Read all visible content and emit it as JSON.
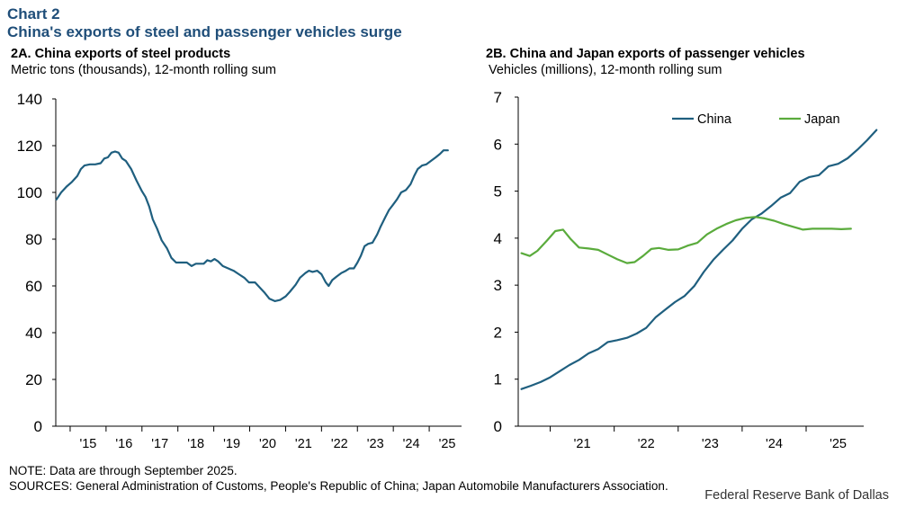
{
  "header": {
    "chart_label": "Chart 2",
    "title": "China's exports of steel and passenger vehicles surge"
  },
  "footer": {
    "note": "NOTE: Data are through September 2025.",
    "sources": "SOURCES: General Administration of Customs, People's Republic of China; Japan Automobile Manufacturers Association.",
    "credit": "Federal Reserve Bank of Dallas"
  },
  "colors": {
    "china": "#1f5f7f",
    "japan": "#5aab3c",
    "axis": "#000000"
  },
  "chart_data": [
    {
      "id": "panel-a",
      "type": "line",
      "title": "2A. China exports of steel products",
      "subtitle": "Metric tons (thousands),  12-month rolling sum",
      "xlabel": "",
      "ylabel": "Metric tons (thousands)",
      "ylim": [
        0,
        140
      ],
      "yticks": [
        0,
        20,
        40,
        60,
        80,
        100,
        120,
        140
      ],
      "xlim": [
        2014.6,
        2025.9
      ],
      "xticks": [
        {
          "label": "'15",
          "x": 2015.5
        },
        {
          "label": "'16",
          "x": 2016.5
        },
        {
          "label": "'17",
          "x": 2017.5
        },
        {
          "label": "'18",
          "x": 2018.5
        },
        {
          "label": "'19",
          "x": 2019.5
        },
        {
          "label": "'20",
          "x": 2020.5
        },
        {
          "label": "'21",
          "x": 2021.5
        },
        {
          "label": "'22",
          "x": 2022.5
        },
        {
          "label": "'23",
          "x": 2023.5
        },
        {
          "label": "'24",
          "x": 2024.5
        },
        {
          "label": "'25",
          "x": 2025.5
        }
      ],
      "xgrid": [
        2015,
        2016,
        2017,
        2018,
        2019,
        2020,
        2021,
        2022,
        2023,
        2024,
        2025,
        2026
      ],
      "series": [
        {
          "name": "China steel exports",
          "color": "#1f5f7f",
          "points": [
            [
              2014.62,
              97
            ],
            [
              2014.75,
              100
            ],
            [
              2014.9,
              102.5
            ],
            [
              2015.05,
              104.5
            ],
            [
              2015.2,
              107
            ],
            [
              2015.3,
              110
            ],
            [
              2015.4,
              111.5
            ],
            [
              2015.55,
              112
            ],
            [
              2015.7,
              112
            ],
            [
              2015.85,
              112.5
            ],
            [
              2015.95,
              114.5
            ],
            [
              2016.05,
              115
            ],
            [
              2016.15,
              117
            ],
            [
              2016.25,
              117.5
            ],
            [
              2016.35,
              117
            ],
            [
              2016.45,
              114.5
            ],
            [
              2016.55,
              113.5
            ],
            [
              2016.7,
              110
            ],
            [
              2016.85,
              105
            ],
            [
              2017.0,
              100.5
            ],
            [
              2017.1,
              98
            ],
            [
              2017.2,
              94
            ],
            [
              2017.3,
              88.5
            ],
            [
              2017.42,
              84.5
            ],
            [
              2017.55,
              79.5
            ],
            [
              2017.7,
              76
            ],
            [
              2017.82,
              72
            ],
            [
              2017.95,
              70
            ],
            [
              2018.1,
              70
            ],
            [
              2018.25,
              70
            ],
            [
              2018.38,
              68.5
            ],
            [
              2018.5,
              69.5
            ],
            [
              2018.62,
              69.5
            ],
            [
              2018.72,
              69.5
            ],
            [
              2018.82,
              71
            ],
            [
              2018.92,
              70.5
            ],
            [
              2019.02,
              71.5
            ],
            [
              2019.12,
              70.5
            ],
            [
              2019.25,
              68.5
            ],
            [
              2019.4,
              67.5
            ],
            [
              2019.55,
              66.5
            ],
            [
              2019.7,
              65
            ],
            [
              2019.85,
              63.5
            ],
            [
              2019.98,
              61.5
            ],
            [
              2020.15,
              61.5
            ],
            [
              2020.3,
              59
            ],
            [
              2020.42,
              57
            ],
            [
              2020.55,
              54.5
            ],
            [
              2020.7,
              53.5
            ],
            [
              2020.85,
              54
            ],
            [
              2021.0,
              55.5
            ],
            [
              2021.12,
              57.5
            ],
            [
              2021.28,
              60.5
            ],
            [
              2021.4,
              63.5
            ],
            [
              2021.55,
              65.5
            ],
            [
              2021.65,
              66.5
            ],
            [
              2021.75,
              66
            ],
            [
              2021.88,
              66.5
            ],
            [
              2022.0,
              65
            ],
            [
              2022.12,
              61.5
            ],
            [
              2022.2,
              60
            ],
            [
              2022.3,
              62.5
            ],
            [
              2022.42,
              64
            ],
            [
              2022.55,
              65.5
            ],
            [
              2022.68,
              66.5
            ],
            [
              2022.78,
              67.5
            ],
            [
              2022.9,
              67.5
            ],
            [
              2023.0,
              70
            ],
            [
              2023.1,
              73
            ],
            [
              2023.2,
              77
            ],
            [
              2023.3,
              78
            ],
            [
              2023.42,
              78.5
            ],
            [
              2023.55,
              82
            ],
            [
              2023.65,
              85.5
            ],
            [
              2023.78,
              89.5
            ],
            [
              2023.88,
              92.5
            ],
            [
              2023.98,
              94.5
            ],
            [
              2024.1,
              97
            ],
            [
              2024.22,
              100
            ],
            [
              2024.35,
              101
            ],
            [
              2024.48,
              103.5
            ],
            [
              2024.58,
              107
            ],
            [
              2024.68,
              110
            ],
            [
              2024.8,
              111.5
            ],
            [
              2024.92,
              112
            ],
            [
              2025.05,
              113.5
            ],
            [
              2025.18,
              115
            ],
            [
              2025.3,
              116.5
            ],
            [
              2025.4,
              118
            ],
            [
              2025.52,
              118
            ]
          ]
        }
      ]
    },
    {
      "id": "panel-b",
      "type": "line",
      "title": "2B. China and Japan exports of passenger vehicles",
      "subtitle": "Vehicles (millions),  12-month rolling sum",
      "xlabel": "",
      "ylabel": "Vehicles (millions)",
      "ylim": [
        0,
        7
      ],
      "yticks": [
        0,
        1,
        2,
        3,
        4,
        5,
        6,
        7
      ],
      "xlim": [
        2020.5,
        2025.9
      ],
      "xticks": [
        {
          "label": "'21",
          "x": 2021.5
        },
        {
          "label": "'22",
          "x": 2022.5
        },
        {
          "label": "'23",
          "x": 2023.5
        },
        {
          "label": "'24",
          "x": 2024.5
        },
        {
          "label": "'25",
          "x": 2025.5
        }
      ],
      "xgrid": [
        2021,
        2022,
        2023,
        2024,
        2025,
        2026
      ],
      "legend_position": "top-right",
      "series": [
        {
          "name": "China",
          "color": "#1f5f7f",
          "points": [
            [
              2020.55,
              0.79
            ],
            [
              2020.7,
              0.86
            ],
            [
              2020.85,
              0.94
            ],
            [
              2021.0,
              1.04
            ],
            [
              2021.15,
              1.17
            ],
            [
              2021.3,
              1.3
            ],
            [
              2021.45,
              1.41
            ],
            [
              2021.6,
              1.55
            ],
            [
              2021.75,
              1.64
            ],
            [
              2021.9,
              1.79
            ],
            [
              2022.05,
              1.83
            ],
            [
              2022.2,
              1.88
            ],
            [
              2022.35,
              1.97
            ],
            [
              2022.5,
              2.09
            ],
            [
              2022.65,
              2.32
            ],
            [
              2022.8,
              2.48
            ],
            [
              2022.95,
              2.64
            ],
            [
              2023.1,
              2.77
            ],
            [
              2023.25,
              2.98
            ],
            [
              2023.4,
              3.28
            ],
            [
              2023.55,
              3.54
            ],
            [
              2023.7,
              3.75
            ],
            [
              2023.85,
              3.95
            ],
            [
              2024.0,
              4.2
            ],
            [
              2024.15,
              4.4
            ],
            [
              2024.3,
              4.52
            ],
            [
              2024.45,
              4.68
            ],
            [
              2024.6,
              4.86
            ],
            [
              2024.75,
              4.96
            ],
            [
              2024.9,
              5.2
            ],
            [
              2025.05,
              5.3
            ],
            [
              2025.2,
              5.34
            ],
            [
              2025.35,
              5.53
            ],
            [
              2025.5,
              5.58
            ],
            [
              2025.65,
              5.7
            ],
            [
              2025.8,
              5.88
            ],
            [
              2025.95,
              6.08
            ],
            [
              2026.1,
              6.3
            ]
          ]
        },
        {
          "name": "Japan",
          "color": "#5aab3c",
          "points": [
            [
              2020.55,
              3.68
            ],
            [
              2020.68,
              3.62
            ],
            [
              2020.8,
              3.73
            ],
            [
              2020.95,
              3.95
            ],
            [
              2021.08,
              4.15
            ],
            [
              2021.2,
              4.18
            ],
            [
              2021.32,
              3.98
            ],
            [
              2021.45,
              3.8
            ],
            [
              2021.6,
              3.78
            ],
            [
              2021.75,
              3.75
            ],
            [
              2021.9,
              3.65
            ],
            [
              2022.05,
              3.55
            ],
            [
              2022.2,
              3.47
            ],
            [
              2022.32,
              3.49
            ],
            [
              2022.45,
              3.62
            ],
            [
              2022.58,
              3.77
            ],
            [
              2022.7,
              3.79
            ],
            [
              2022.85,
              3.75
            ],
            [
              2023.0,
              3.76
            ],
            [
              2023.15,
              3.84
            ],
            [
              2023.3,
              3.9
            ],
            [
              2023.45,
              4.08
            ],
            [
              2023.6,
              4.2
            ],
            [
              2023.75,
              4.3
            ],
            [
              2023.9,
              4.38
            ],
            [
              2024.05,
              4.43
            ],
            [
              2024.2,
              4.45
            ],
            [
              2024.35,
              4.42
            ],
            [
              2024.5,
              4.37
            ],
            [
              2024.65,
              4.3
            ],
            [
              2024.8,
              4.24
            ],
            [
              2024.95,
              4.18
            ],
            [
              2025.1,
              4.2
            ],
            [
              2025.25,
              4.2
            ],
            [
              2025.4,
              4.2
            ],
            [
              2025.55,
              4.19
            ],
            [
              2025.7,
              4.2
            ]
          ]
        }
      ]
    }
  ]
}
